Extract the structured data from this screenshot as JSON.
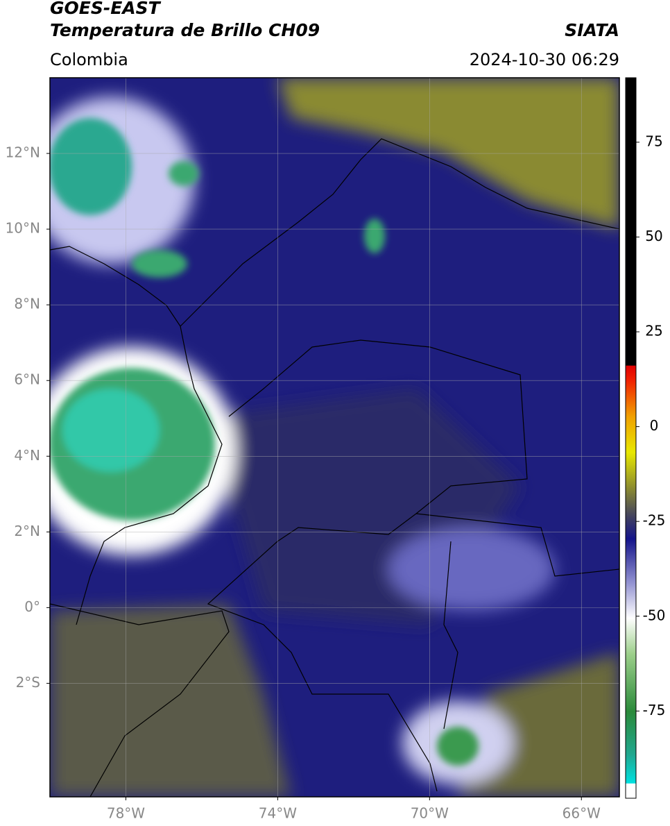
{
  "header": {
    "title": "GOES-EAST",
    "subtitle": "Temperatura de Brillo CH09",
    "source": "SIATA",
    "region": "Colombia",
    "datetime": "2024-10-30 06:29"
  },
  "map": {
    "lat_lim": [
      -5,
      14
    ],
    "lon_lim": [
      -80,
      -65
    ],
    "lat_ticks": [
      {
        "value": 12,
        "label": "12°N"
      },
      {
        "value": 10,
        "label": "10°N"
      },
      {
        "value": 8,
        "label": "8°N"
      },
      {
        "value": 6,
        "label": "6°N"
      },
      {
        "value": 4,
        "label": "4°N"
      },
      {
        "value": 2,
        "label": "2°N"
      },
      {
        "value": 0,
        "label": "0°"
      },
      {
        "value": -2,
        "label": "2°S"
      }
    ],
    "lon_ticks": [
      {
        "value": -78,
        "label": "78°W"
      },
      {
        "value": -74,
        "label": "74°W"
      },
      {
        "value": -70,
        "label": "70°W"
      },
      {
        "value": -66,
        "label": "66°W"
      }
    ]
  },
  "colorbar": {
    "lim": [
      -98,
      92
    ],
    "ticks": [
      75,
      50,
      25,
      0,
      -25,
      -50,
      -75
    ]
  }
}
